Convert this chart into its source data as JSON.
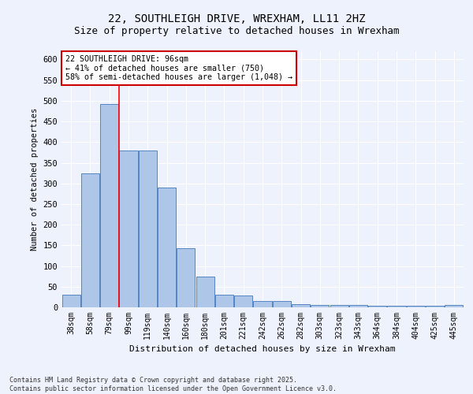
{
  "title1": "22, SOUTHLEIGH DRIVE, WREXHAM, LL11 2HZ",
  "title2": "Size of property relative to detached houses in Wrexham",
  "xlabel": "Distribution of detached houses by size in Wrexham",
  "ylabel": "Number of detached properties",
  "categories": [
    "38sqm",
    "58sqm",
    "79sqm",
    "99sqm",
    "119sqm",
    "140sqm",
    "160sqm",
    "180sqm",
    "201sqm",
    "221sqm",
    "242sqm",
    "262sqm",
    "282sqm",
    "303sqm",
    "323sqm",
    "343sqm",
    "364sqm",
    "384sqm",
    "404sqm",
    "425sqm",
    "445sqm"
  ],
  "values": [
    30,
    325,
    493,
    380,
    380,
    290,
    143,
    75,
    30,
    28,
    15,
    15,
    7,
    5,
    5,
    5,
    3,
    3,
    3,
    3,
    5
  ],
  "bar_color": "#aec6e8",
  "bar_edge_color": "#5585c5",
  "annotation_title": "22 SOUTHLEIGH DRIVE: 96sqm",
  "annotation_line1": "← 41% of detached houses are smaller (750)",
  "annotation_line2": "58% of semi-detached houses are larger (1,048) →",
  "annotation_box_color": "#ffffff",
  "annotation_box_edge": "#cc0000",
  "footnote1": "Contains HM Land Registry data © Crown copyright and database right 2025.",
  "footnote2": "Contains public sector information licensed under the Open Government Licence v3.0.",
  "ylim": [
    0,
    620
  ],
  "yticks": [
    0,
    50,
    100,
    150,
    200,
    250,
    300,
    350,
    400,
    450,
    500,
    550,
    600
  ],
  "bg_color": "#eef2fc",
  "grid_color": "#ffffff",
  "title1_fontsize": 10,
  "title2_fontsize": 9
}
